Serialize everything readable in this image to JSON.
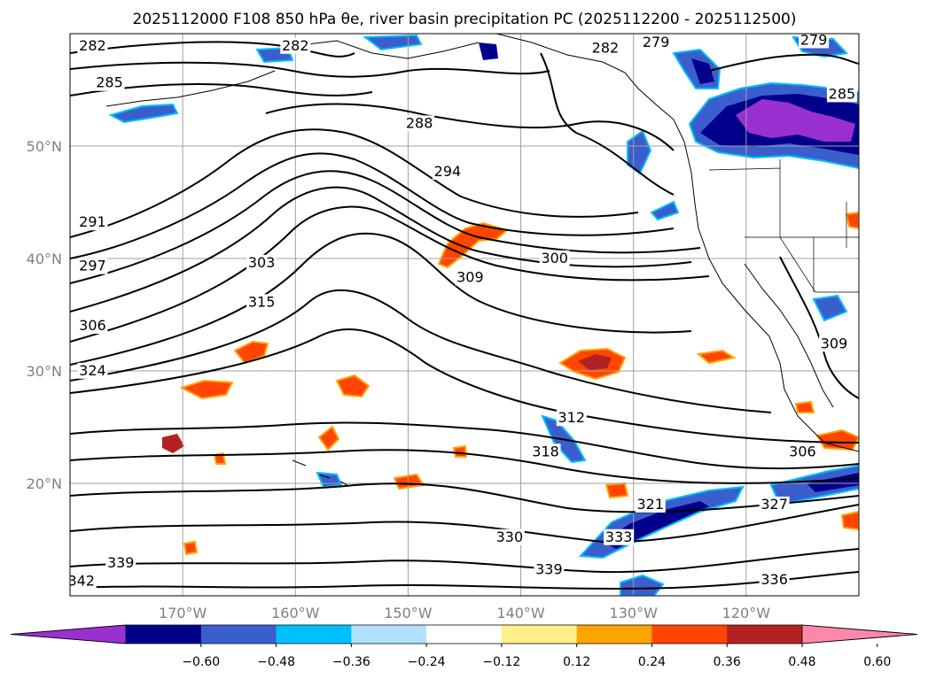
{
  "title": "2025112000 F108 850 hPa θe, river basin precipitation PC (2025112200 - 2025112500)",
  "map": {
    "lon_range": [
      -180,
      -110
    ],
    "lat_range": [
      10,
      60
    ],
    "lon_ticks": [
      "170°W",
      "160°W",
      "150°W",
      "140°W",
      "130°W",
      "120°W"
    ],
    "lat_ticks": [
      "50°N",
      "40°N",
      "30°N",
      "20°N"
    ],
    "grid": true,
    "contour_variable": "850 hPa θe",
    "contour_labels": [
      {
        "text": "282",
        "lon": -178,
        "lat": 58.6
      },
      {
        "text": "282",
        "lon": -160,
        "lat": 58.6
      },
      {
        "text": "279",
        "lon": -128,
        "lat": 58.9
      },
      {
        "text": "279",
        "lon": -114,
        "lat": 59.1
      },
      {
        "text": "282",
        "lon": -132.5,
        "lat": 58.4
      },
      {
        "text": "285",
        "lon": -176.5,
        "lat": 55.3
      },
      {
        "text": "285",
        "lon": -111.5,
        "lat": 54.3
      },
      {
        "text": "288",
        "lon": -149,
        "lat": 51.7
      },
      {
        "text": "294",
        "lon": -146.5,
        "lat": 47.4
      },
      {
        "text": "291",
        "lon": -178,
        "lat": 42.9
      },
      {
        "text": "297",
        "lon": -178,
        "lat": 39.0
      },
      {
        "text": "303",
        "lon": -163,
        "lat": 39.3
      },
      {
        "text": "300",
        "lon": -137,
        "lat": 39.7
      },
      {
        "text": "309",
        "lon": -144.5,
        "lat": 38.0
      },
      {
        "text": "315",
        "lon": -163,
        "lat": 35.8
      },
      {
        "text": "306",
        "lon": -178,
        "lat": 33.7
      },
      {
        "text": "309",
        "lon": -112.2,
        "lat": 32.1
      },
      {
        "text": "324",
        "lon": -178,
        "lat": 29.7
      },
      {
        "text": "312",
        "lon": -135.5,
        "lat": 25.5
      },
      {
        "text": "318",
        "lon": -137.8,
        "lat": 22.5
      },
      {
        "text": "306",
        "lon": -115,
        "lat": 22.5
      },
      {
        "text": "321",
        "lon": -128.5,
        "lat": 17.8
      },
      {
        "text": "327",
        "lon": -117.5,
        "lat": 17.8
      },
      {
        "text": "330",
        "lon": -141,
        "lat": 14.9
      },
      {
        "text": "333",
        "lon": -131.3,
        "lat": 14.9
      },
      {
        "text": "339",
        "lon": -175.5,
        "lat": 12.6
      },
      {
        "text": "339",
        "lon": -137.5,
        "lat": 12.0
      },
      {
        "text": "342",
        "lon": -179,
        "lat": 11.0
      },
      {
        "text": "336",
        "lon": -117.5,
        "lat": 11.1
      }
    ]
  },
  "colorbar": {
    "tick_labels": [
      "−0.60",
      "−0.48",
      "−0.36",
      "−0.24",
      "−0.12",
      "0.12",
      "0.24",
      "0.36",
      "0.48",
      "0.60"
    ],
    "colors": [
      "#9b30d0",
      "#00008b",
      "#3a5fcd",
      "#00bfff",
      "#b0e2ff",
      "#ffffff",
      "#fff08a",
      "#ffa500",
      "#ff4500",
      "#b22222",
      "#ff88aa"
    ],
    "extend": "both"
  },
  "precip_colors": {
    "neg_strong": "#9b30d0",
    "neg_dark": "#00008b",
    "neg_mid": "#3a5fcd",
    "neg_light": "#00bfff",
    "pos_light": "#ffa500",
    "pos_mid": "#ff4500",
    "pos_strong": "#b22222"
  }
}
